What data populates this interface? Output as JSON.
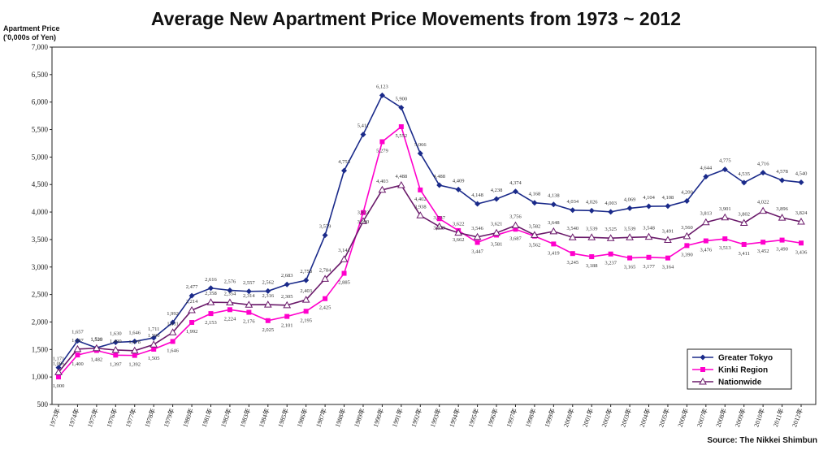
{
  "chart_data": {
    "type": "line",
    "title": "Average New Apartment Price Movements from 1973 ~ 2012",
    "ylabel_line1": "Apartment Price",
    "ylabel_line2": "('0,000s of Yen)",
    "source": "Source: The Nikkei Shimbun",
    "ylim": [
      500,
      7000
    ],
    "yticks": [
      "500",
      "1,000",
      "1,500",
      "2,000",
      "2,500",
      "3,000",
      "3,500",
      "4,000",
      "4,500",
      "5,000",
      "5,500",
      "6,000",
      "6,500",
      "7,000"
    ],
    "categories": [
      "1973年",
      "1974年",
      "1975年",
      "1976年",
      "1977年",
      "1978年",
      "1979年",
      "1980年",
      "1981年",
      "1982年",
      "1983年",
      "1984年",
      "1985年",
      "1986年",
      "1987年",
      "1988年",
      "1989年",
      "1990年",
      "1991年",
      "1992年",
      "1993年",
      "1994年",
      "1995年",
      "1996年",
      "1997年",
      "1998年",
      "1999年",
      "2000年",
      "2001年",
      "2002年",
      "2003年",
      "2004年",
      "2005年",
      "2006年",
      "2007年",
      "2008年",
      "2009年",
      "2010年",
      "2011年",
      "2012年"
    ],
    "legend_position": "bottom-right",
    "series": [
      {
        "name": "Greater Tokyo",
        "color": "#1a2a8a",
        "marker": "diamond",
        "values": [
          1171,
          1657,
          1530,
          1630,
          1646,
          1711,
          1992,
          2477,
          2616,
          2576,
          2557,
          2562,
          2683,
          2758,
          3579,
          4753,
          5411,
          6123,
          5900,
          5066,
          4488,
          4409,
          4148,
          4238,
          4374,
          4168,
          4138,
          4034,
          4026,
          4003,
          4069,
          4104,
          4108,
          4200,
          4644,
          4775,
          4535,
          4716,
          4578,
          4540
        ],
        "labels": [
          "1,171",
          "1,657",
          "1,530",
          "1,630",
          "1,646",
          "1,711",
          "1,992",
          "2,477",
          "2,616",
          "2,576",
          "2,557",
          "2,562",
          "2,683",
          "2,758",
          "3,579",
          "4,753",
          "5,411",
          "6,123",
          "5,900",
          "5,066",
          "4,488",
          "4,409",
          "4,148",
          "4,238",
          "4,374",
          "4,168",
          "4,138",
          "4,034",
          "4,026",
          "4,003",
          "4,069",
          "4,104",
          "4,108",
          "4,200",
          "4,644",
          "4,775",
          "4,535",
          "4,716",
          "4,578",
          "4,540"
        ]
      },
      {
        "name": "Kinki Region",
        "color": "#ff00cc",
        "marker": "square",
        "values": [
          1000,
          1400,
          1482,
          1397,
          1392,
          1505,
          1646,
          1992,
          2153,
          2224,
          2176,
          2025,
          2101,
          2195,
          2425,
          2885,
          3990,
          5279,
          5552,
          4402,
          3879,
          3662,
          3447,
          3581,
          3687,
          3562,
          3419,
          3245,
          3188,
          3237,
          3165,
          3177,
          3164,
          3390,
          3476,
          3513,
          3411,
          3452,
          3490,
          3436
        ],
        "labels": [
          "1,000",
          "1,400",
          "1,482",
          "1,397",
          "1,392",
          "1,505",
          "1,646",
          "1,992",
          "2,153",
          "2,224",
          "2,176",
          "2,025",
          "2,101",
          "2,195",
          "2,425",
          "2,885",
          "3,990",
          "5,279",
          "5,552",
          "4,402",
          "3,879",
          "3,662",
          "3,447",
          "3,581",
          "3,687",
          "3,562",
          "3,419",
          "3,245",
          "3,188",
          "3,237",
          "3,165",
          "3,177",
          "3,164",
          "3,390",
          "3,476",
          "3,513",
          "3,411",
          "3,452",
          "3,490",
          "3,436"
        ]
      },
      {
        "name": "Nationwide",
        "color": "#6a1a6a",
        "marker": "triangle",
        "values": [
          1086,
          1507,
          1523,
          1490,
          1478,
          1590,
          1811,
          2214,
          2358,
          2354,
          2314,
          2316,
          2305,
          2403,
          2784,
          3141,
          3833,
          4403,
          4488,
          3938,
          3737,
          3622,
          3546,
          3621,
          3756,
          3582,
          3648,
          3540,
          3539,
          3525,
          3539,
          3548,
          3491,
          3560,
          3813,
          3901,
          3802,
          4022,
          3896,
          3824
        ],
        "labels": [
          "1,086",
          "1,507",
          "1,523",
          "1,490",
          "1,478",
          "1,590",
          "1,811",
          "2,214",
          "2,358",
          "2,354",
          "2,314",
          "2,316",
          "2,305",
          "2,403",
          "2,784",
          "3,141",
          "3,833",
          "4,403",
          "4,488",
          "3,938",
          "3,737",
          "3,622",
          "3,546",
          "3,621",
          "3,756",
          "3,582",
          "3,648",
          "3,540",
          "3,539",
          "3,525",
          "3,539",
          "3,548",
          "3,491",
          "3,560",
          "3,813",
          "3,901",
          "3,802",
          "4,022",
          "3,896",
          "3,824"
        ]
      }
    ]
  }
}
